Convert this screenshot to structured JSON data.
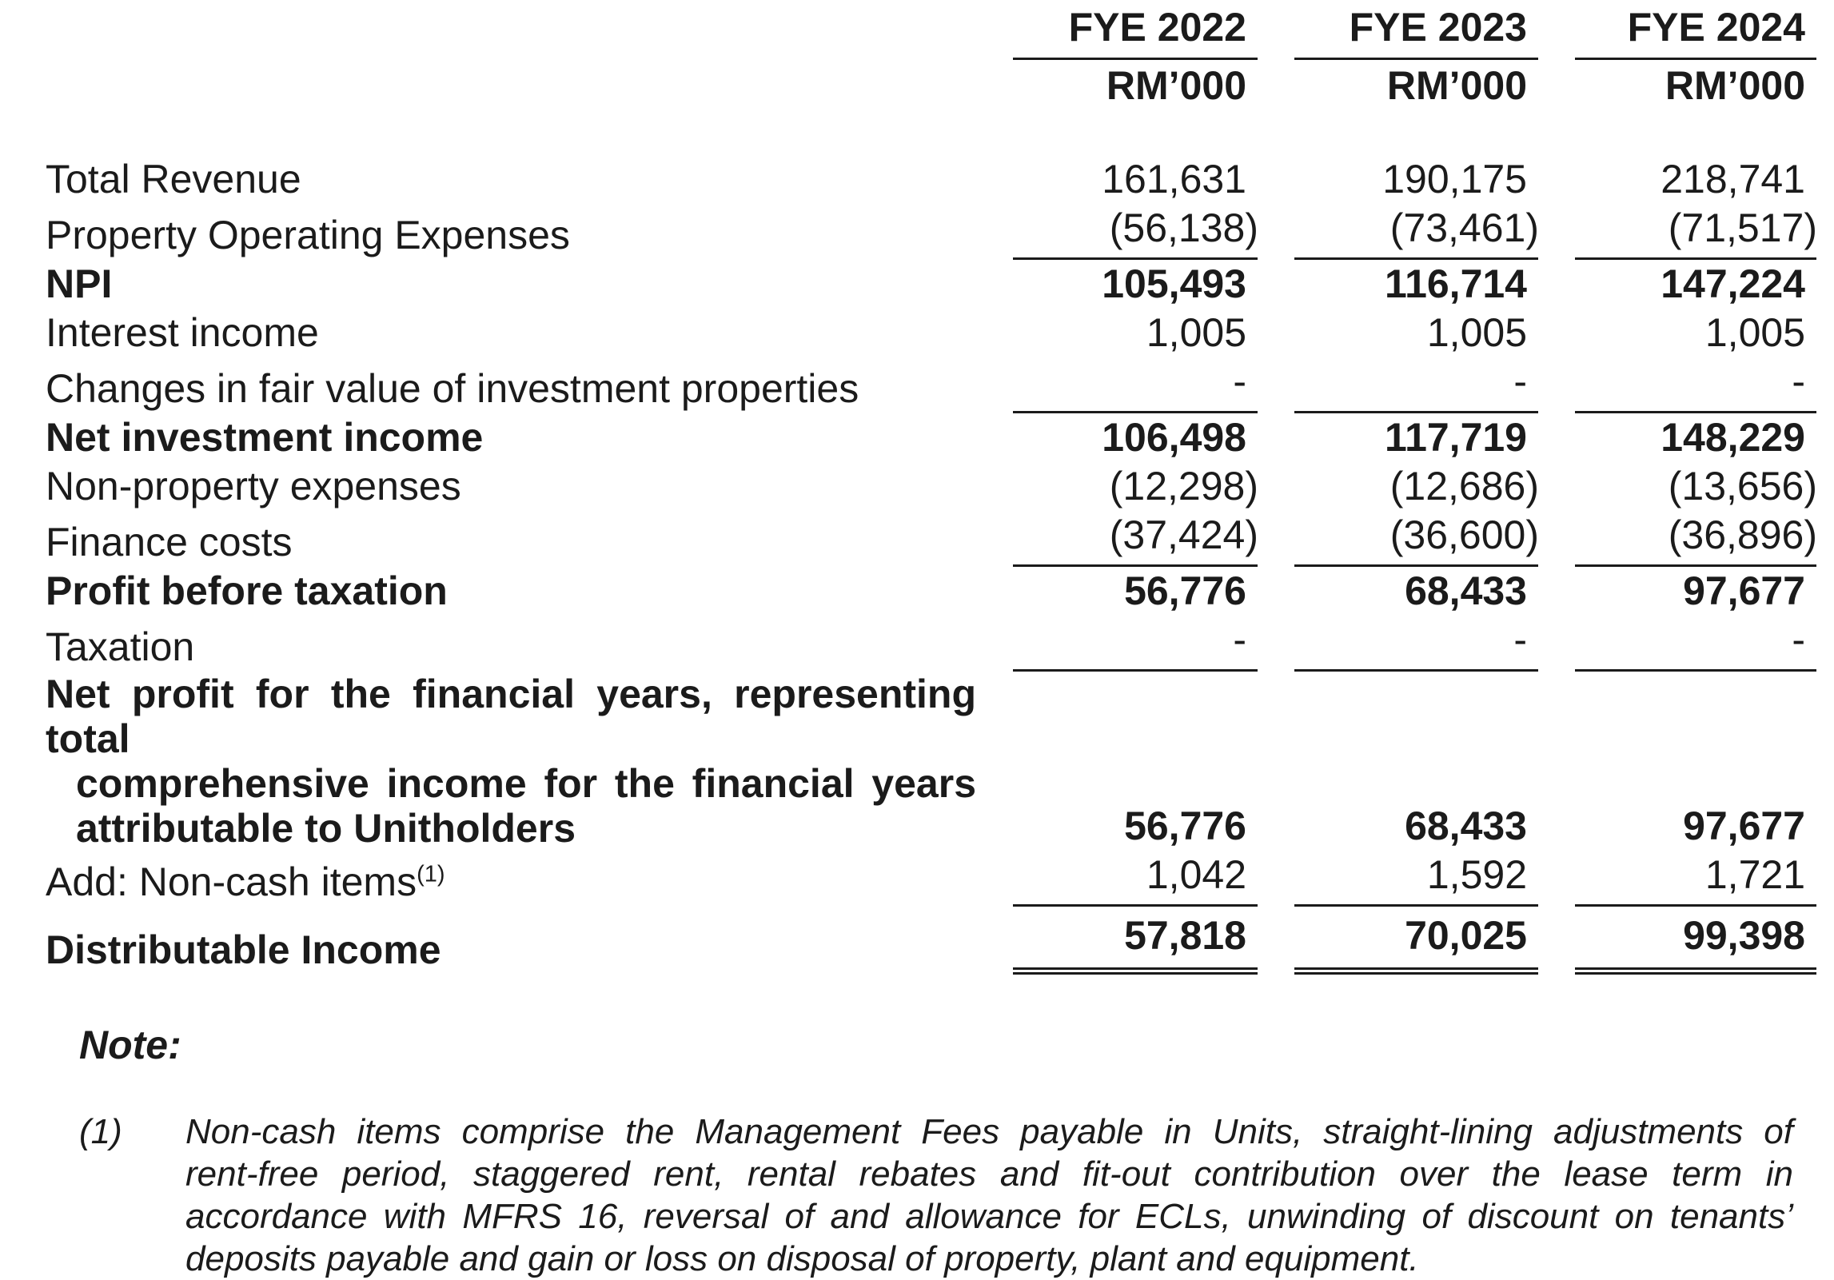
{
  "text_color": "#1b1b1b",
  "header": {
    "columns": [
      "FYE 2022",
      "FYE 2023",
      "FYE 2024"
    ],
    "unit": "RM’000"
  },
  "table": {
    "rows": [
      {
        "label": "Total Revenue",
        "bold": false,
        "underline": "none",
        "values": [
          "161,631",
          "190,175",
          "218,741"
        ]
      },
      {
        "label": "Property Operating Expenses",
        "bold": false,
        "underline": "single",
        "values": [
          "(56,138)",
          "(73,461)",
          "(71,517)"
        ]
      },
      {
        "label": "NPI",
        "bold": true,
        "underline": "none",
        "values": [
          "105,493",
          "116,714",
          "147,224"
        ]
      },
      {
        "label": "Interest income",
        "bold": false,
        "underline": "none",
        "values": [
          "1,005",
          "1,005",
          "1,005"
        ]
      },
      {
        "label": "Changes in fair value of investment properties",
        "bold": false,
        "underline": "single",
        "values": [
          "-",
          "-",
          "-"
        ]
      },
      {
        "label": "Net investment income",
        "bold": true,
        "underline": "none",
        "values": [
          "106,498",
          "117,719",
          "148,229"
        ]
      },
      {
        "label": "Non-property expenses",
        "bold": false,
        "underline": "none",
        "values": [
          "(12,298)",
          "(12,686)",
          "(13,656)"
        ]
      },
      {
        "label": "Finance costs",
        "bold": false,
        "underline": "single",
        "values": [
          "(37,424)",
          "(36,600)",
          "(36,896)"
        ]
      },
      {
        "label": "Profit before taxation",
        "bold": true,
        "underline": "none",
        "values": [
          "56,776",
          "68,433",
          "97,677"
        ]
      },
      {
        "label": "Taxation",
        "bold": false,
        "underline": "single",
        "values": [
          "-",
          "-",
          "-"
        ]
      },
      {
        "label_lines": [
          "Net profit for the financial years, representing total",
          "comprehensive income for the financial years",
          "attributable to Unitholders"
        ],
        "bold": true,
        "underline": "none",
        "values": [
          "56,776",
          "68,433",
          "97,677"
        ]
      },
      {
        "label": "Add: Non-cash items",
        "superscript": "(1)",
        "bold": false,
        "underline": "single",
        "values": [
          "1,042",
          "1,592",
          "1,721"
        ]
      },
      {
        "label": "Distributable Income",
        "bold": true,
        "underline": "double",
        "values": [
          "57,818",
          "70,025",
          "99,398"
        ]
      }
    ]
  },
  "note": {
    "heading": "Note:",
    "items": [
      {
        "marker": "(1)",
        "text": "Non-cash items comprise the Management Fees payable in Units, straight-lining adjustments of rent-free period, staggered rent, rental rebates and fit-out contribution over the lease term in accordance with MFRS 16, reversal of and allowance for ECLs, unwinding of discount on tenants’ deposits payable and gain or loss on disposal of property, plant and equipment.",
        "text_lines": [
          "Non-cash items comprise the Management Fees payable in Units, straight-lining adjustments of",
          "rent-free period, staggered rent, rental rebates and fit-out contribution over the lease term in",
          "accordance with MFRS 16, reversal of and allowance for ECLs, unwinding of discount on tenants’",
          "deposits payable and gain or loss on disposal of property, plant and equipment."
        ]
      }
    ]
  }
}
